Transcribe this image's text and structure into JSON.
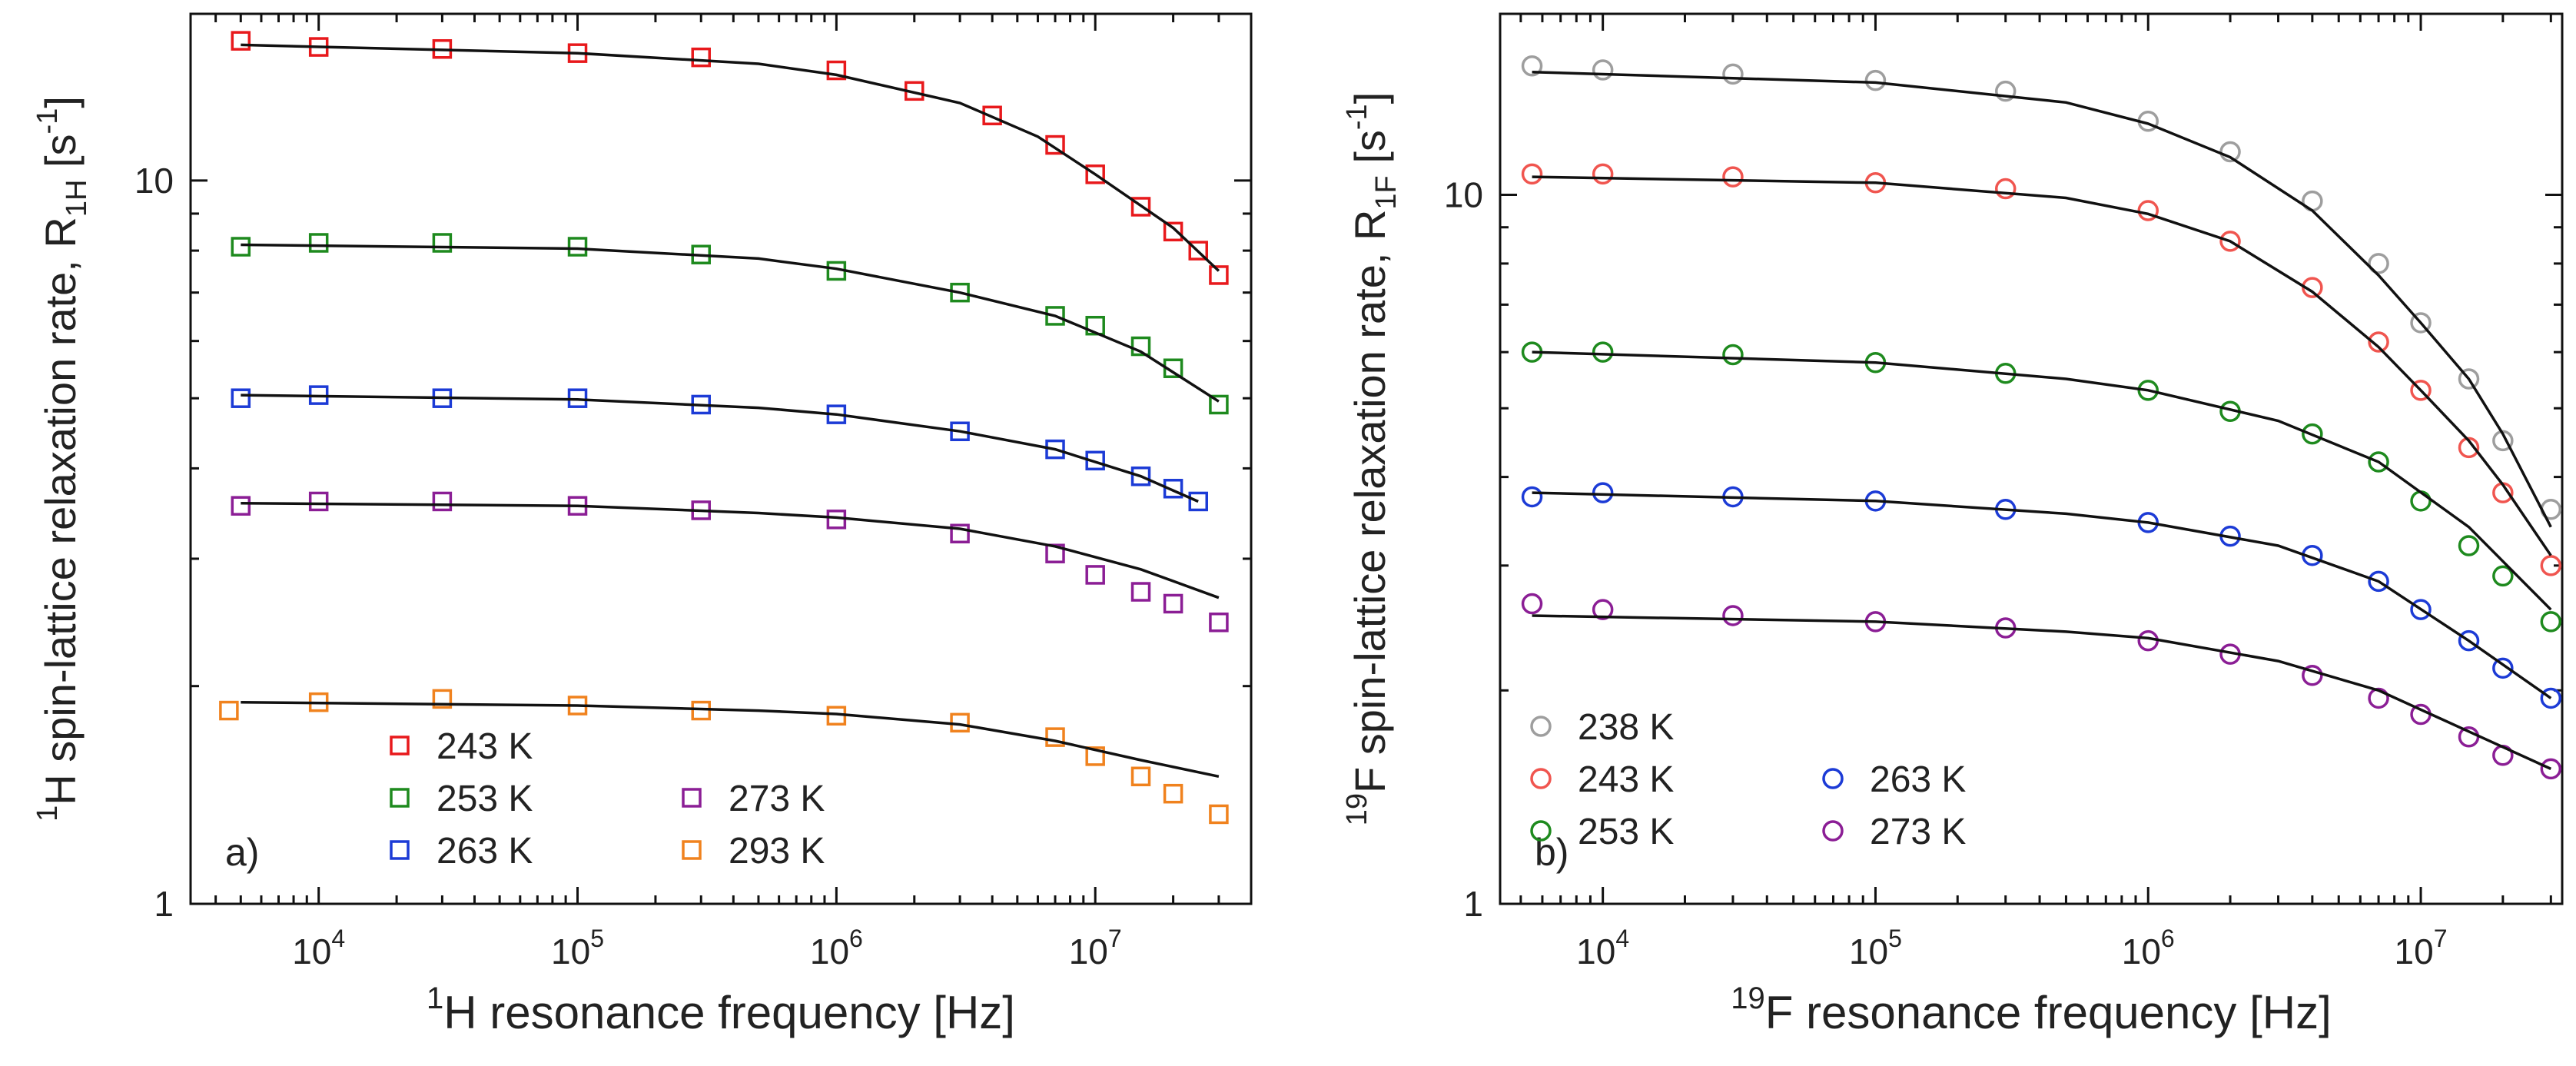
{
  "chart_data": [
    {
      "type": "scatter",
      "panel_label": "a)",
      "ylabel": {
        "sup": "1",
        "main": "H spin-lattice relaxation rate, R",
        "sub": "1H",
        "unit_open": " [s",
        "unit_sup": "-1",
        "unit_close": "]"
      },
      "xlabel": {
        "sup": "1",
        "main": "H resonance  frequency [Hz]"
      },
      "xscale": "log",
      "yscale": "log",
      "xlim": [
        3200,
        40000000
      ],
      "ylim": [
        1,
        17
      ],
      "x_ticks": [
        {
          "base": "10",
          "exp": "4"
        },
        {
          "base": "10",
          "exp": "5"
        },
        {
          "base": "10",
          "exp": "6"
        },
        {
          "base": "10",
          "exp": "7"
        }
      ],
      "x_tick_values": [
        10000,
        100000,
        1000000,
        10000000
      ],
      "y_ticks": [
        {
          "label": "1",
          "value": 1
        },
        {
          "label": "10",
          "value": 10
        }
      ],
      "marker": "square",
      "fit_line_color": "#111111",
      "legend": {
        "position": "bottom-center",
        "columns": 2
      },
      "series": [
        {
          "name": "243 K",
          "color": "#e8191c",
          "points": [
            [
              5000,
              15.6
            ],
            [
              10000,
              15.3
            ],
            [
              30000,
              15.2
            ],
            [
              100000,
              15.0
            ],
            [
              300000,
              14.8
            ],
            [
              1000000,
              14.2
            ],
            [
              2000000,
              13.3
            ],
            [
              4000000,
              12.3
            ],
            [
              7000000,
              11.2
            ],
            [
              10000000,
              10.2
            ],
            [
              15000000,
              9.2
            ],
            [
              20000000,
              8.5
            ],
            [
              25000000,
              8.0
            ],
            [
              30000000,
              7.4
            ]
          ],
          "fit": [
            [
              5000,
              15.4
            ],
            [
              100000,
              15.0
            ],
            [
              500000,
              14.5
            ],
            [
              1000000,
              14.0
            ],
            [
              3000000,
              12.8
            ],
            [
              6000000,
              11.5
            ],
            [
              10000000,
              10.2
            ],
            [
              20000000,
              8.6
            ],
            [
              30000000,
              7.5
            ]
          ]
        },
        {
          "name": "253 K",
          "color": "#1e8a1e",
          "points": [
            [
              5000,
              8.1
            ],
            [
              10000,
              8.2
            ],
            [
              30000,
              8.2
            ],
            [
              100000,
              8.1
            ],
            [
              300000,
              7.9
            ],
            [
              1000000,
              7.5
            ],
            [
              3000000,
              7.0
            ],
            [
              7000000,
              6.5
            ],
            [
              10000000,
              6.3
            ],
            [
              15000000,
              5.9
            ],
            [
              20000000,
              5.5
            ],
            [
              30000000,
              4.9
            ]
          ],
          "fit": [
            [
              5000,
              8.15
            ],
            [
              100000,
              8.05
            ],
            [
              500000,
              7.8
            ],
            [
              1000000,
              7.55
            ],
            [
              3000000,
              7.0
            ],
            [
              7000000,
              6.5
            ],
            [
              15000000,
              5.8
            ],
            [
              30000000,
              4.95
            ]
          ]
        },
        {
          "name": "263 K",
          "color": "#1c3bd6",
          "points": [
            [
              5000,
              5.0
            ],
            [
              10000,
              5.05
            ],
            [
              30000,
              5.0
            ],
            [
              100000,
              5.0
            ],
            [
              300000,
              4.9
            ],
            [
              1000000,
              4.75
            ],
            [
              3000000,
              4.5
            ],
            [
              7000000,
              4.25
            ],
            [
              10000000,
              4.1
            ],
            [
              15000000,
              3.9
            ],
            [
              20000000,
              3.75
            ],
            [
              25000000,
              3.6
            ]
          ],
          "fit": [
            [
              5000,
              5.05
            ],
            [
              100000,
              4.98
            ],
            [
              500000,
              4.85
            ],
            [
              1000000,
              4.75
            ],
            [
              3000000,
              4.5
            ],
            [
              7000000,
              4.25
            ],
            [
              15000000,
              3.9
            ],
            [
              25000000,
              3.6
            ]
          ]
        },
        {
          "name": "273 K",
          "color": "#8b1e95",
          "points": [
            [
              5000,
              3.55
            ],
            [
              10000,
              3.6
            ],
            [
              30000,
              3.6
            ],
            [
              100000,
              3.55
            ],
            [
              300000,
              3.5
            ],
            [
              1000000,
              3.4
            ],
            [
              3000000,
              3.25
            ],
            [
              7000000,
              3.05
            ],
            [
              10000000,
              2.85
            ],
            [
              15000000,
              2.7
            ],
            [
              20000000,
              2.6
            ],
            [
              30000000,
              2.45
            ]
          ],
          "fit": [
            [
              5000,
              3.58
            ],
            [
              100000,
              3.55
            ],
            [
              500000,
              3.47
            ],
            [
              1000000,
              3.42
            ],
            [
              3000000,
              3.3
            ],
            [
              7000000,
              3.12
            ],
            [
              15000000,
              2.9
            ],
            [
              30000000,
              2.65
            ]
          ]
        },
        {
          "name": "293 K",
          "color": "#f0821e",
          "points": [
            [
              4500,
              1.85
            ],
            [
              10000,
              1.9
            ],
            [
              30000,
              1.92
            ],
            [
              100000,
              1.88
            ],
            [
              300000,
              1.85
            ],
            [
              1000000,
              1.82
            ],
            [
              3000000,
              1.78
            ],
            [
              7000000,
              1.7
            ],
            [
              10000000,
              1.6
            ],
            [
              15000000,
              1.5
            ],
            [
              20000000,
              1.42
            ],
            [
              30000000,
              1.33
            ]
          ],
          "fit": [
            [
              5000,
              1.9
            ],
            [
              100000,
              1.88
            ],
            [
              500000,
              1.85
            ],
            [
              1000000,
              1.83
            ],
            [
              3000000,
              1.77
            ],
            [
              7000000,
              1.68
            ],
            [
              15000000,
              1.58
            ],
            [
              30000000,
              1.5
            ]
          ]
        }
      ]
    },
    {
      "type": "scatter",
      "panel_label": "b)",
      "ylabel": {
        "sup": "19",
        "main": "F spin-lattice relaxation rate, R",
        "sub": "1F",
        "unit_open": " [s",
        "unit_sup": "-1",
        "unit_close": "]"
      },
      "xlabel": {
        "sup": "19",
        "main": "F  resonance frequency [Hz]"
      },
      "xscale": "log",
      "yscale": "log",
      "xlim": [
        4200,
        33000000
      ],
      "ylim": [
        1,
        18
      ],
      "x_ticks": [
        {
          "base": "10",
          "exp": "4"
        },
        {
          "base": "10",
          "exp": "5"
        },
        {
          "base": "10",
          "exp": "6"
        },
        {
          "base": "10",
          "exp": "7"
        }
      ],
      "x_tick_values": [
        10000,
        100000,
        1000000,
        10000000
      ],
      "y_ticks": [
        {
          "label": "1",
          "value": 1
        },
        {
          "label": "10",
          "value": 10
        }
      ],
      "marker": "circle",
      "fit_line_color": "#111111",
      "legend": {
        "position": "bottom-left",
        "columns": 2
      },
      "series": [
        {
          "name": "238 K",
          "color": "#9e9e9e",
          "points": [
            [
              5500,
              15.2
            ],
            [
              10000,
              15.0
            ],
            [
              30000,
              14.8
            ],
            [
              100000,
              14.5
            ],
            [
              300000,
              14.0
            ],
            [
              1000000,
              12.7
            ],
            [
              2000000,
              11.5
            ],
            [
              4000000,
              9.8
            ],
            [
              7000000,
              8.0
            ],
            [
              10000000,
              6.6
            ],
            [
              15000000,
              5.5
            ],
            [
              20000000,
              4.5
            ],
            [
              30000000,
              3.6
            ]
          ],
          "fit": [
            [
              5500,
              14.9
            ],
            [
              100000,
              14.4
            ],
            [
              500000,
              13.5
            ],
            [
              1000000,
              12.6
            ],
            [
              2000000,
              11.3
            ],
            [
              4000000,
              9.5
            ],
            [
              7000000,
              7.7
            ],
            [
              10000000,
              6.6
            ],
            [
              15000000,
              5.5
            ],
            [
              20000000,
              4.6
            ],
            [
              30000000,
              3.4
            ]
          ]
        },
        {
          "name": "243 K",
          "color": "#f0554f",
          "points": [
            [
              5500,
              10.7
            ],
            [
              10000,
              10.7
            ],
            [
              30000,
              10.6
            ],
            [
              100000,
              10.4
            ],
            [
              300000,
              10.2
            ],
            [
              1000000,
              9.5
            ],
            [
              2000000,
              8.6
            ],
            [
              4000000,
              7.4
            ],
            [
              7000000,
              6.2
            ],
            [
              10000000,
              5.3
            ],
            [
              15000000,
              4.4
            ],
            [
              20000000,
              3.8
            ],
            [
              30000000,
              3.0
            ]
          ],
          "fit": [
            [
              5500,
              10.6
            ],
            [
              100000,
              10.4
            ],
            [
              500000,
              9.9
            ],
            [
              1000000,
              9.4
            ],
            [
              2000000,
              8.6
            ],
            [
              4000000,
              7.3
            ],
            [
              7000000,
              6.1
            ],
            [
              10000000,
              5.3
            ],
            [
              15000000,
              4.5
            ],
            [
              20000000,
              3.9
            ],
            [
              30000000,
              3.1
            ]
          ]
        },
        {
          "name": "253 K",
          "color": "#1e8a1e",
          "points": [
            [
              5500,
              6.0
            ],
            [
              10000,
              6.0
            ],
            [
              30000,
              5.95
            ],
            [
              100000,
              5.8
            ],
            [
              300000,
              5.6
            ],
            [
              1000000,
              5.3
            ],
            [
              2000000,
              4.95
            ],
            [
              4000000,
              4.6
            ],
            [
              7000000,
              4.2
            ],
            [
              10000000,
              3.7
            ],
            [
              15000000,
              3.2
            ],
            [
              20000000,
              2.9
            ],
            [
              30000000,
              2.5
            ]
          ],
          "fit": [
            [
              5500,
              6.0
            ],
            [
              100000,
              5.8
            ],
            [
              500000,
              5.5
            ],
            [
              1000000,
              5.3
            ],
            [
              3000000,
              4.8
            ],
            [
              7000000,
              4.2
            ],
            [
              15000000,
              3.4
            ],
            [
              30000000,
              2.6
            ]
          ]
        },
        {
          "name": "263 K",
          "color": "#1c3bd6",
          "points": [
            [
              5500,
              3.75
            ],
            [
              10000,
              3.8
            ],
            [
              30000,
              3.75
            ],
            [
              100000,
              3.7
            ],
            [
              300000,
              3.6
            ],
            [
              1000000,
              3.45
            ],
            [
              2000000,
              3.3
            ],
            [
              4000000,
              3.1
            ],
            [
              7000000,
              2.85
            ],
            [
              10000000,
              2.6
            ],
            [
              15000000,
              2.35
            ],
            [
              20000000,
              2.15
            ],
            [
              30000000,
              1.95
            ]
          ],
          "fit": [
            [
              5500,
              3.8
            ],
            [
              100000,
              3.7
            ],
            [
              500000,
              3.55
            ],
            [
              1000000,
              3.45
            ],
            [
              3000000,
              3.2
            ],
            [
              7000000,
              2.85
            ],
            [
              15000000,
              2.35
            ],
            [
              30000000,
              1.95
            ]
          ]
        },
        {
          "name": "273 K",
          "color": "#8b1e95",
          "points": [
            [
              5500,
              2.65
            ],
            [
              10000,
              2.6
            ],
            [
              30000,
              2.55
            ],
            [
              100000,
              2.5
            ],
            [
              300000,
              2.45
            ],
            [
              1000000,
              2.35
            ],
            [
              2000000,
              2.25
            ],
            [
              4000000,
              2.1
            ],
            [
              7000000,
              1.95
            ],
            [
              10000000,
              1.85
            ],
            [
              15000000,
              1.72
            ],
            [
              20000000,
              1.62
            ],
            [
              30000000,
              1.55
            ]
          ],
          "fit": [
            [
              5500,
              2.55
            ],
            [
              100000,
              2.5
            ],
            [
              500000,
              2.42
            ],
            [
              1000000,
              2.37
            ],
            [
              3000000,
              2.2
            ],
            [
              7000000,
              2.0
            ],
            [
              15000000,
              1.75
            ],
            [
              30000000,
              1.55
            ]
          ]
        }
      ]
    }
  ]
}
